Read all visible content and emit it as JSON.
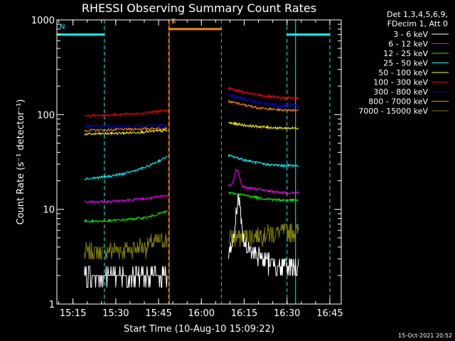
{
  "chart_data": {
    "type": "line",
    "title": "RHESSI Observing Summary Count Rates",
    "xlabel": "Start Time (10-Aug-10 15:09:22)",
    "ylabel": "Count Rate (s⁻¹ detector⁻¹)",
    "y_scale": "log",
    "ylim": [
      1,
      1000
    ],
    "xlim": [
      "15:09:22",
      "16:49:00"
    ],
    "x_ticks": [
      "15:15",
      "15:30",
      "15:45",
      "16:00",
      "16:15",
      "16:30",
      "16:45"
    ],
    "y_ticks": [
      {
        "value": 1,
        "label": "1"
      },
      {
        "value": 10,
        "label": "10"
      },
      {
        "value": 100,
        "label": "100"
      },
      {
        "value": 1000,
        "label": "1000"
      }
    ],
    "timestamp": "15-Oct-2021 20:52",
    "legend": {
      "placement": "right-outside",
      "header": [
        "Det 1,3,4,5,6,9,",
        "FDecim 1, Att 0"
      ]
    },
    "segments": [
      {
        "start": "15:19:00",
        "end": "15:48:00"
      },
      {
        "start": "16:09:30",
        "end": "16:34:00"
      }
    ],
    "series": [
      {
        "name": "3 - 6 keV",
        "color": "#ffffff",
        "values_seg1": [
          2.0,
          2.0,
          2.0,
          2.0,
          2.0
        ],
        "values_seg2": [
          4.0,
          4.0,
          3.0,
          2.5,
          2.5
        ],
        "peaks": [
          {
            "time": "16:13:00",
            "value": 13
          }
        ]
      },
      {
        "name": "6 - 12 keV",
        "color": "#ff00ff",
        "values_seg1": [
          12,
          12,
          12.5,
          13,
          14
        ],
        "values_seg2": [
          18,
          17,
          16,
          15,
          15
        ],
        "peaks": [
          {
            "time": "16:12:30",
            "value": 27
          }
        ]
      },
      {
        "name": "12 - 25 keV",
        "color": "#00ff00",
        "values_seg1": [
          7.5,
          7.5,
          7.8,
          8.2,
          9.5
        ],
        "values_seg2": [
          15,
          14,
          13,
          12.5,
          12.5
        ]
      },
      {
        "name": "25 - 50 keV",
        "color": "#00ffff",
        "values_seg1": [
          21,
          22,
          24,
          28,
          36
        ],
        "values_seg2": [
          37,
          33,
          30,
          29,
          29
        ]
      },
      {
        "name": "50 - 100 keV",
        "color": "#ffff00",
        "values_seg1": [
          62,
          63,
          64,
          66,
          68
        ],
        "values_seg2": [
          82,
          77,
          74,
          72,
          72
        ]
      },
      {
        "name": "100 - 300 keV",
        "color": "#ff0000",
        "values_seg1": [
          97,
          99,
          101,
          104,
          112
        ],
        "values_seg2": [
          190,
          170,
          158,
          150,
          150
        ]
      },
      {
        "name": "300 - 800 keV",
        "color": "#0000ff",
        "values_seg1": [
          76,
          76,
          76,
          77,
          77
        ],
        "values_seg2": [
          160,
          145,
          132,
          125,
          125
        ]
      },
      {
        "name": "800 - 7000 keV",
        "color": "#ff8800",
        "values_seg1": [
          68,
          69,
          70,
          71,
          72
        ],
        "values_seg2": [
          138,
          125,
          116,
          112,
          112
        ]
      },
      {
        "name": "7000 - 15000 keV",
        "color": "#808000",
        "values_seg1": [
          3.5,
          3.6,
          3.8,
          4.2,
          4.8
        ],
        "values_seg2": [
          5.0,
          5.2,
          5.5,
          5.8,
          6.0
        ]
      }
    ],
    "annotations": [
      {
        "label": "N",
        "color": "#00ffff",
        "type": "night",
        "start": "15:09:22",
        "end": "15:26:00",
        "level": 700
      },
      {
        "label": "",
        "color": "#00ffff",
        "type": "night",
        "start": "16:30:00",
        "end": "16:45:00",
        "level": 700
      },
      {
        "label": "S",
        "color": "#ff8800",
        "type": "saa",
        "start": "15:48:30",
        "end": "16:07:00",
        "level": 800
      }
    ]
  }
}
